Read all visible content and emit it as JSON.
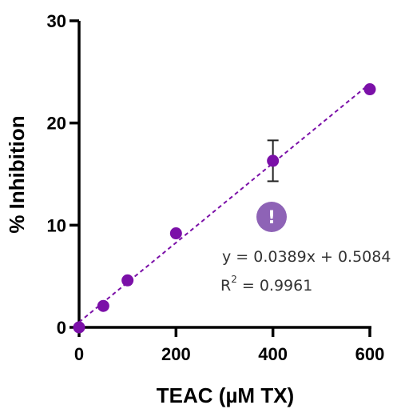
{
  "chart_data": {
    "type": "scatter",
    "xlabel": "TEAC (µM TX)",
    "ylabel": "% Inhibition",
    "xlim": [
      0,
      600
    ],
    "ylim": [
      0,
      30
    ],
    "x_ticks": [
      "0",
      "200",
      "400",
      "600"
    ],
    "y_ticks": [
      "0",
      "10",
      "20",
      "30"
    ],
    "grid": false,
    "series": [
      {
        "points": [
          {
            "x": 0,
            "y": 0
          },
          {
            "x": 50,
            "y": 2.1
          },
          {
            "x": 100,
            "y": 4.6
          },
          {
            "x": 200,
            "y": 9.2
          },
          {
            "x": 400,
            "y": 16.3,
            "err": 2.0
          },
          {
            "x": 600,
            "y": 23.3
          }
        ],
        "color": "#7b10a8"
      }
    ],
    "fit": {
      "slope": 0.0389,
      "intercept": 0.5084,
      "style": "dashed",
      "color": "#7b10a8"
    },
    "annotations": {
      "equation": "y = 0.0389x + 0.5084",
      "r2_prefix": "R",
      "r2_sup": "2",
      "r2_value": " = 0.9961"
    },
    "warning_icon": {
      "symbol": "!",
      "color": "#8e63b6"
    }
  }
}
